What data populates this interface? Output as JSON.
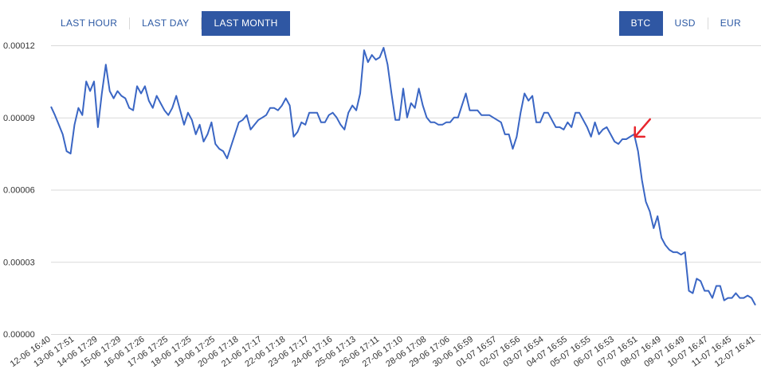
{
  "range_tabs": [
    {
      "label": "LAST HOUR",
      "active": false
    },
    {
      "label": "LAST DAY",
      "active": false
    },
    {
      "label": "LAST MONTH",
      "active": true
    }
  ],
  "currency_tabs": [
    {
      "label": "BTC",
      "active": true
    },
    {
      "label": "USD",
      "active": false
    },
    {
      "label": "EUR",
      "active": false
    }
  ],
  "colors": {
    "accent": "#2f57a3",
    "line": "#3a66c4",
    "grid": "#d9d9d9",
    "annotation_arrow": "#e8262d"
  },
  "chart_data": {
    "type": "line",
    "title": "",
    "xlabel": "",
    "ylabel": "",
    "ylim": [
      0,
      0.00012
    ],
    "yticks": [
      "0.00000",
      "0.00003",
      "0.00006",
      "0.00009",
      "0.00012"
    ],
    "xticks": [
      "12-06 16:40",
      "13-06 17:51",
      "14-06 17:29",
      "15-06 17:29",
      "16-06 17:26",
      "17-06 17:25",
      "18-06 17:25",
      "19-06 17:25",
      "20-06 17:18",
      "21-06 17:17",
      "22-06 17:18",
      "23-06 17:17",
      "24-06 17:16",
      "25-06 17:13",
      "26-06 17:11",
      "27-06 17:10",
      "28-06 17:08",
      "29-06 17:06",
      "30-06 16:59",
      "01-07 16:57",
      "02-07 16:56",
      "03-07 16:54",
      "04-07 16:55",
      "05-07 16:55",
      "06-07 16:53",
      "07-07 16:51",
      "08-07 16:49",
      "09-07 16:49",
      "10-07 16:47",
      "11-07 16:45",
      "12-07 16:41"
    ],
    "grid": true,
    "legend": "none",
    "annotation": "red arrow pointing at the start of the drop",
    "series": [
      {
        "values": [
          9.45e-05,
          9.1e-05,
          8.7e-05,
          8.3e-05,
          7.6e-05,
          7.5e-05,
          8.7e-05,
          9.4e-05,
          9.1e-05,
          0.000105,
          0.000101,
          0.000105,
          8.6e-05,
          0.0001,
          0.000112,
          0.000101,
          9.8e-05,
          0.000101,
          9.9e-05,
          9.8e-05,
          9.4e-05,
          9.3e-05,
          0.000103,
          0.0001,
          0.000103,
          9.7e-05,
          9.4e-05,
          9.9e-05,
          9.6e-05,
          9.3e-05,
          9.1e-05,
          9.4e-05,
          9.9e-05,
          9.3e-05,
          8.7e-05,
          9.2e-05,
          8.9e-05,
          8.3e-05,
          8.7e-05,
          8e-05,
          8.3e-05,
          8.8e-05,
          7.9e-05,
          7.7e-05,
          7.6e-05,
          7.3e-05,
          7.8e-05,
          8.3e-05,
          8.8e-05,
          8.9e-05,
          9.1e-05,
          8.5e-05,
          8.7e-05,
          8.9e-05,
          9e-05,
          9.1e-05,
          9.4e-05,
          9.4e-05,
          9.3e-05,
          9.5e-05,
          9.8e-05,
          9.5e-05,
          8.2e-05,
          8.4e-05,
          8.8e-05,
          8.7e-05,
          9.2e-05,
          9.2e-05,
          9.2e-05,
          8.8e-05,
          8.8e-05,
          9.1e-05,
          9.2e-05,
          9e-05,
          8.7e-05,
          8.5e-05,
          9.2e-05,
          9.5e-05,
          9.3e-05,
          0.0001,
          0.000118,
          0.000113,
          0.000116,
          0.000114,
          0.000115,
          0.000119,
          0.000112,
          0.0001,
          8.9e-05,
          8.9e-05,
          0.000102,
          9e-05,
          9.6e-05,
          9.4e-05,
          0.000102,
          9.5e-05,
          9e-05,
          8.8e-05,
          8.8e-05,
          8.7e-05,
          8.7e-05,
          8.8e-05,
          8.8e-05,
          9e-05,
          9e-05,
          9.5e-05,
          0.0001,
          9.3e-05,
          9.3e-05,
          9.3e-05,
          9.1e-05,
          9.1e-05,
          9.1e-05,
          9e-05,
          8.9e-05,
          8.8e-05,
          8.3e-05,
          8.3e-05,
          7.7e-05,
          8.2e-05,
          9.2e-05,
          0.0001,
          9.7e-05,
          9.9e-05,
          8.8e-05,
          8.8e-05,
          9.2e-05,
          9.2e-05,
          8.9e-05,
          8.6e-05,
          8.6e-05,
          8.5e-05,
          8.8e-05,
          8.6e-05,
          9.2e-05,
          9.2e-05,
          8.9e-05,
          8.6e-05,
          8.2e-05,
          8.8e-05,
          8.3e-05,
          8.5e-05,
          8.6e-05,
          8.3e-05,
          8e-05,
          7.9e-05,
          8.1e-05,
          8.1e-05,
          8.2e-05,
          8.3e-05,
          7.6e-05,
          6.4e-05,
          5.5e-05,
          5.1e-05,
          4.4e-05,
          4.9e-05,
          4e-05,
          3.7e-05,
          3.5e-05,
          3.4e-05,
          3.4e-05,
          3.3e-05,
          3.4e-05,
          1.8e-05,
          1.7e-05,
          2.3e-05,
          2.2e-05,
          1.8e-05,
          1.8e-05,
          1.5e-05,
          2e-05,
          2e-05,
          1.4e-05,
          1.5e-05,
          1.5e-05,
          1.7e-05,
          1.5e-05,
          1.5e-05,
          1.6e-05,
          1.5e-05,
          1.2e-05
        ]
      }
    ]
  }
}
